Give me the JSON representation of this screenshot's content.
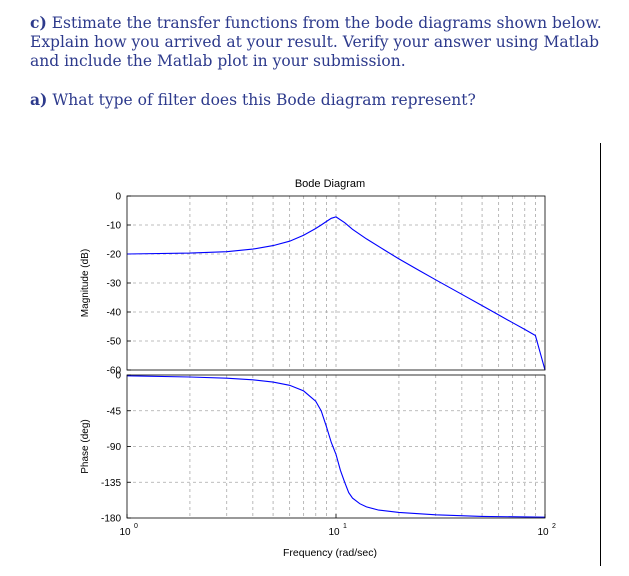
{
  "question_c": {
    "label": "c)",
    "text": "Estimate the transfer functions from the bode diagrams shown below. Explain how you arrived at your result. Verify your answer using Matlab and include the Matlab plot in your submission."
  },
  "question_a": {
    "label": "a)",
    "text": "What type of filter does this Bode diagram represent?"
  },
  "colors": {
    "question_text": "#2d3a8c",
    "trace": "#0000ff",
    "grid": "#a8a8a8"
  },
  "chart_data": {
    "type": "line",
    "title": "Bode Diagram",
    "xlabel": "Frequency (rad/sec)",
    "xscale": "log",
    "xlim": [
      1,
      100
    ],
    "x_ticks": [
      {
        "base": "10",
        "exp": "0"
      },
      {
        "base": "10",
        "exp": "1"
      },
      {
        "base": "10",
        "exp": "2"
      }
    ],
    "grid": true,
    "magnitude": {
      "ylabel": "Magnitude (dB)",
      "ylim": [
        -60,
        0
      ],
      "yticks": [
        "0",
        "-10",
        "-20",
        "-30",
        "-40",
        "-50",
        "-60"
      ],
      "x": [
        1,
        2,
        3,
        4,
        5,
        6,
        7,
        8,
        8.5,
        9,
        9.5,
        10,
        11,
        12,
        14,
        17,
        20,
        25,
        30,
        40,
        50,
        60,
        70,
        80,
        90,
        100
      ],
      "y": [
        -20,
        -19.7,
        -19.2,
        -18.3,
        -17.1,
        -15.6,
        -13.5,
        -11.2,
        -10,
        -8.8,
        -7.7,
        -7.2,
        -9.2,
        -11.5,
        -14.8,
        -18.6,
        -21.7,
        -25.7,
        -28.9,
        -33.9,
        -37.8,
        -41,
        -43.7,
        -46,
        -48.1,
        -62
      ]
    },
    "phase": {
      "ylabel": "Phase (deg)",
      "ylim": [
        -180,
        0
      ],
      "yticks": [
        "0",
        "-45",
        "-90",
        "-135",
        "-180"
      ],
      "x": [
        1,
        2,
        3,
        4,
        5,
        6,
        7,
        8,
        8.5,
        9,
        9.5,
        10,
        10.5,
        11,
        11.5,
        12,
        13,
        14,
        16,
        20,
        30,
        50,
        100
      ],
      "y": [
        -1,
        -2.5,
        -4,
        -6,
        -9,
        -13,
        -20,
        -33,
        -45,
        -65,
        -85,
        -100,
        -120,
        -135,
        -148,
        -155,
        -162,
        -166,
        -170,
        -173,
        -176,
        -178,
        -179
      ]
    }
  }
}
